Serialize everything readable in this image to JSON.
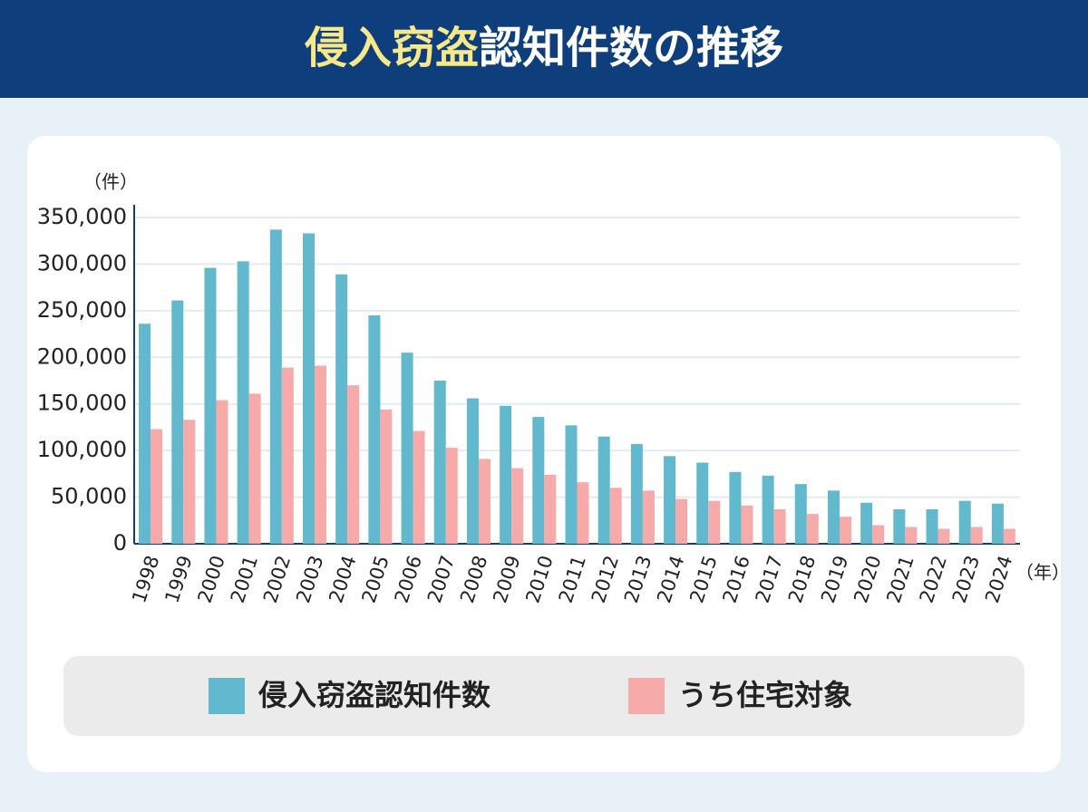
{
  "chart_data": {
    "type": "bar",
    "title": [
      "侵入窃盗",
      "認知件数の推移"
    ],
    "y_label": "（件）",
    "x_label": "（年）",
    "categories": [
      "1998",
      "1999",
      "2000",
      "2001",
      "2002",
      "2003",
      "2004",
      "2005",
      "2006",
      "2007",
      "2008",
      "2009",
      "2010",
      "2011",
      "2012",
      "2013",
      "2014",
      "2015",
      "2016",
      "2017",
      "2018",
      "2019",
      "2020",
      "2021",
      "2022",
      "2023",
      "2024"
    ],
    "series": [
      {
        "name": "侵入窃盗認知件数",
        "color": "#62b8cc",
        "values": [
          236000,
          261000,
          296000,
          303000,
          337000,
          333000,
          289000,
          245000,
          205000,
          175000,
          156000,
          148000,
          136000,
          127000,
          115000,
          107000,
          94000,
          87000,
          77000,
          73000,
          64000,
          57000,
          44000,
          37000,
          37000,
          46000,
          43000
        ]
      },
      {
        "name": "うち住宅対象",
        "color": "#f7aaaa",
        "values": [
          123000,
          133000,
          154000,
          161000,
          189000,
          191000,
          170000,
          144000,
          121000,
          103000,
          91000,
          81000,
          74000,
          66000,
          60000,
          57000,
          48000,
          46000,
          41000,
          37000,
          32000,
          29000,
          20000,
          18000,
          16000,
          18000,
          16000
        ]
      }
    ],
    "ylim": [
      0,
      350000
    ],
    "yticks": [
      0,
      {
        "value": 50000,
        "label": "50,000"
      },
      {
        "value": 100000,
        "label": "100,000"
      },
      {
        "value": 150000,
        "label": "150,000"
      },
      {
        "value": 200000,
        "label": "200,000"
      },
      {
        "value": 250000,
        "label": "250,000"
      },
      {
        "value": 300000,
        "label": "300,000"
      },
      {
        "value": 350000,
        "label": "350,000"
      }
    ],
    "grid": true
  }
}
